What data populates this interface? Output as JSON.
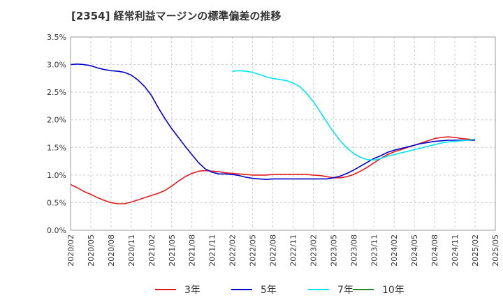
{
  "chart_data": {
    "type": "line",
    "title": "[2354]  経常利益マージンの標準偏差の推移",
    "x_tick_labels": [
      "2020/02",
      "2020/05",
      "2020/08",
      "2020/11",
      "2021/02",
      "2021/05",
      "2021/08",
      "2021/11",
      "2022/02",
      "2022/05",
      "2022/08",
      "2022/11",
      "2023/02",
      "2023/05",
      "2023/08",
      "2023/11",
      "2024/02",
      "2024/05",
      "2024/08",
      "2024/11",
      "2025/02",
      "2025/05"
    ],
    "y_tick_labels": [
      "0.0%",
      "0.5%",
      "1.0%",
      "1.5%",
      "2.0%",
      "2.5%",
      "3.0%",
      "3.5%"
    ],
    "ylim": [
      0,
      3.5
    ],
    "y_unit": "%",
    "grid": true,
    "legend_position": "bottom",
    "series": [
      {
        "name": "3年",
        "color": "#e41a1c",
        "x": [
          "2020/02",
          "2020/03",
          "2020/04",
          "2020/05",
          "2020/06",
          "2020/07",
          "2020/08",
          "2020/09",
          "2020/10",
          "2020/11",
          "2020/12",
          "2021/01",
          "2021/02",
          "2021/03",
          "2021/04",
          "2021/05",
          "2021/06",
          "2021/07",
          "2021/08",
          "2021/09",
          "2021/10",
          "2021/11",
          "2021/12",
          "2022/01",
          "2022/02",
          "2022/03",
          "2022/04",
          "2022/05",
          "2022/06",
          "2022/07",
          "2022/08",
          "2022/09",
          "2022/10",
          "2022/11",
          "2022/12",
          "2023/01",
          "2023/02",
          "2023/03",
          "2023/04",
          "2023/05",
          "2023/06",
          "2023/07",
          "2023/08",
          "2023/09",
          "2023/10",
          "2023/11",
          "2023/12",
          "2024/01",
          "2024/02",
          "2024/03",
          "2024/04",
          "2024/05",
          "2024/06",
          "2024/07",
          "2024/08",
          "2024/09",
          "2024/10",
          "2024/11",
          "2024/12",
          "2025/01",
          "2025/02"
        ],
        "y": [
          0.83,
          0.77,
          0.7,
          0.65,
          0.59,
          0.54,
          0.5,
          0.48,
          0.48,
          0.51,
          0.55,
          0.59,
          0.63,
          0.67,
          0.72,
          0.8,
          0.89,
          0.97,
          1.03,
          1.07,
          1.08,
          1.07,
          1.06,
          1.04,
          1.03,
          1.02,
          1.01,
          1.0,
          1.0,
          1.0,
          1.01,
          1.01,
          1.01,
          1.01,
          1.01,
          1.01,
          1.0,
          0.99,
          0.97,
          0.95,
          0.95,
          0.97,
          1.01,
          1.07,
          1.14,
          1.22,
          1.3,
          1.37,
          1.42,
          1.46,
          1.5,
          1.54,
          1.58,
          1.62,
          1.66,
          1.68,
          1.69,
          1.68,
          1.66,
          1.65,
          1.64
        ]
      },
      {
        "name": "5年",
        "color": "#0000cd",
        "x": [
          "2020/02",
          "2020/03",
          "2020/04",
          "2020/05",
          "2020/06",
          "2020/07",
          "2020/08",
          "2020/09",
          "2020/10",
          "2020/11",
          "2020/12",
          "2021/01",
          "2021/02",
          "2021/03",
          "2021/04",
          "2021/05",
          "2021/06",
          "2021/07",
          "2021/08",
          "2021/09",
          "2021/10",
          "2021/11",
          "2021/12",
          "2022/01",
          "2022/02",
          "2022/03",
          "2022/04",
          "2022/05",
          "2022/06",
          "2022/07",
          "2022/08",
          "2022/09",
          "2022/10",
          "2022/11",
          "2022/12",
          "2023/01",
          "2023/02",
          "2023/03",
          "2023/04",
          "2023/05",
          "2023/06",
          "2023/07",
          "2023/08",
          "2023/09",
          "2023/10",
          "2023/11",
          "2023/12",
          "2024/01",
          "2024/02",
          "2024/03",
          "2024/04",
          "2024/05",
          "2024/06",
          "2024/07",
          "2024/08",
          "2024/09",
          "2024/10",
          "2024/11",
          "2024/12",
          "2025/01",
          "2025/02"
        ],
        "y": [
          3.0,
          3.01,
          3.0,
          2.98,
          2.94,
          2.91,
          2.89,
          2.88,
          2.86,
          2.81,
          2.72,
          2.6,
          2.44,
          2.22,
          2.02,
          1.84,
          1.68,
          1.52,
          1.37,
          1.22,
          1.11,
          1.05,
          1.02,
          1.02,
          1.01,
          0.99,
          0.96,
          0.94,
          0.93,
          0.92,
          0.93,
          0.93,
          0.93,
          0.93,
          0.93,
          0.93,
          0.93,
          0.93,
          0.93,
          0.95,
          0.98,
          1.03,
          1.09,
          1.16,
          1.23,
          1.3,
          1.35,
          1.41,
          1.45,
          1.48,
          1.51,
          1.54,
          1.57,
          1.59,
          1.61,
          1.62,
          1.63,
          1.63,
          1.63,
          1.63,
          1.63
        ]
      },
      {
        "name": "7年",
        "color": "#00e5ee",
        "x": [
          "2022/02",
          "2022/03",
          "2022/04",
          "2022/05",
          "2022/06",
          "2022/07",
          "2022/08",
          "2022/09",
          "2022/10",
          "2022/11",
          "2022/12",
          "2023/01",
          "2023/02",
          "2023/03",
          "2023/04",
          "2023/05",
          "2023/06",
          "2023/07",
          "2023/08",
          "2023/09",
          "2023/10",
          "2023/11",
          "2023/12",
          "2024/01",
          "2024/02",
          "2024/03",
          "2024/04",
          "2024/05",
          "2024/06",
          "2024/07",
          "2024/08",
          "2024/09",
          "2024/10",
          "2024/11",
          "2024/12",
          "2025/01",
          "2025/02"
        ],
        "y": [
          2.88,
          2.89,
          2.88,
          2.86,
          2.82,
          2.78,
          2.75,
          2.73,
          2.71,
          2.67,
          2.6,
          2.48,
          2.33,
          2.15,
          1.96,
          1.78,
          1.62,
          1.49,
          1.39,
          1.32,
          1.28,
          1.27,
          1.3,
          1.34,
          1.37,
          1.4,
          1.43,
          1.46,
          1.49,
          1.52,
          1.55,
          1.58,
          1.6,
          1.61,
          1.62,
          1.63,
          1.65
        ]
      },
      {
        "name": "10年",
        "color": "#228b22",
        "x": [],
        "y": []
      }
    ]
  }
}
